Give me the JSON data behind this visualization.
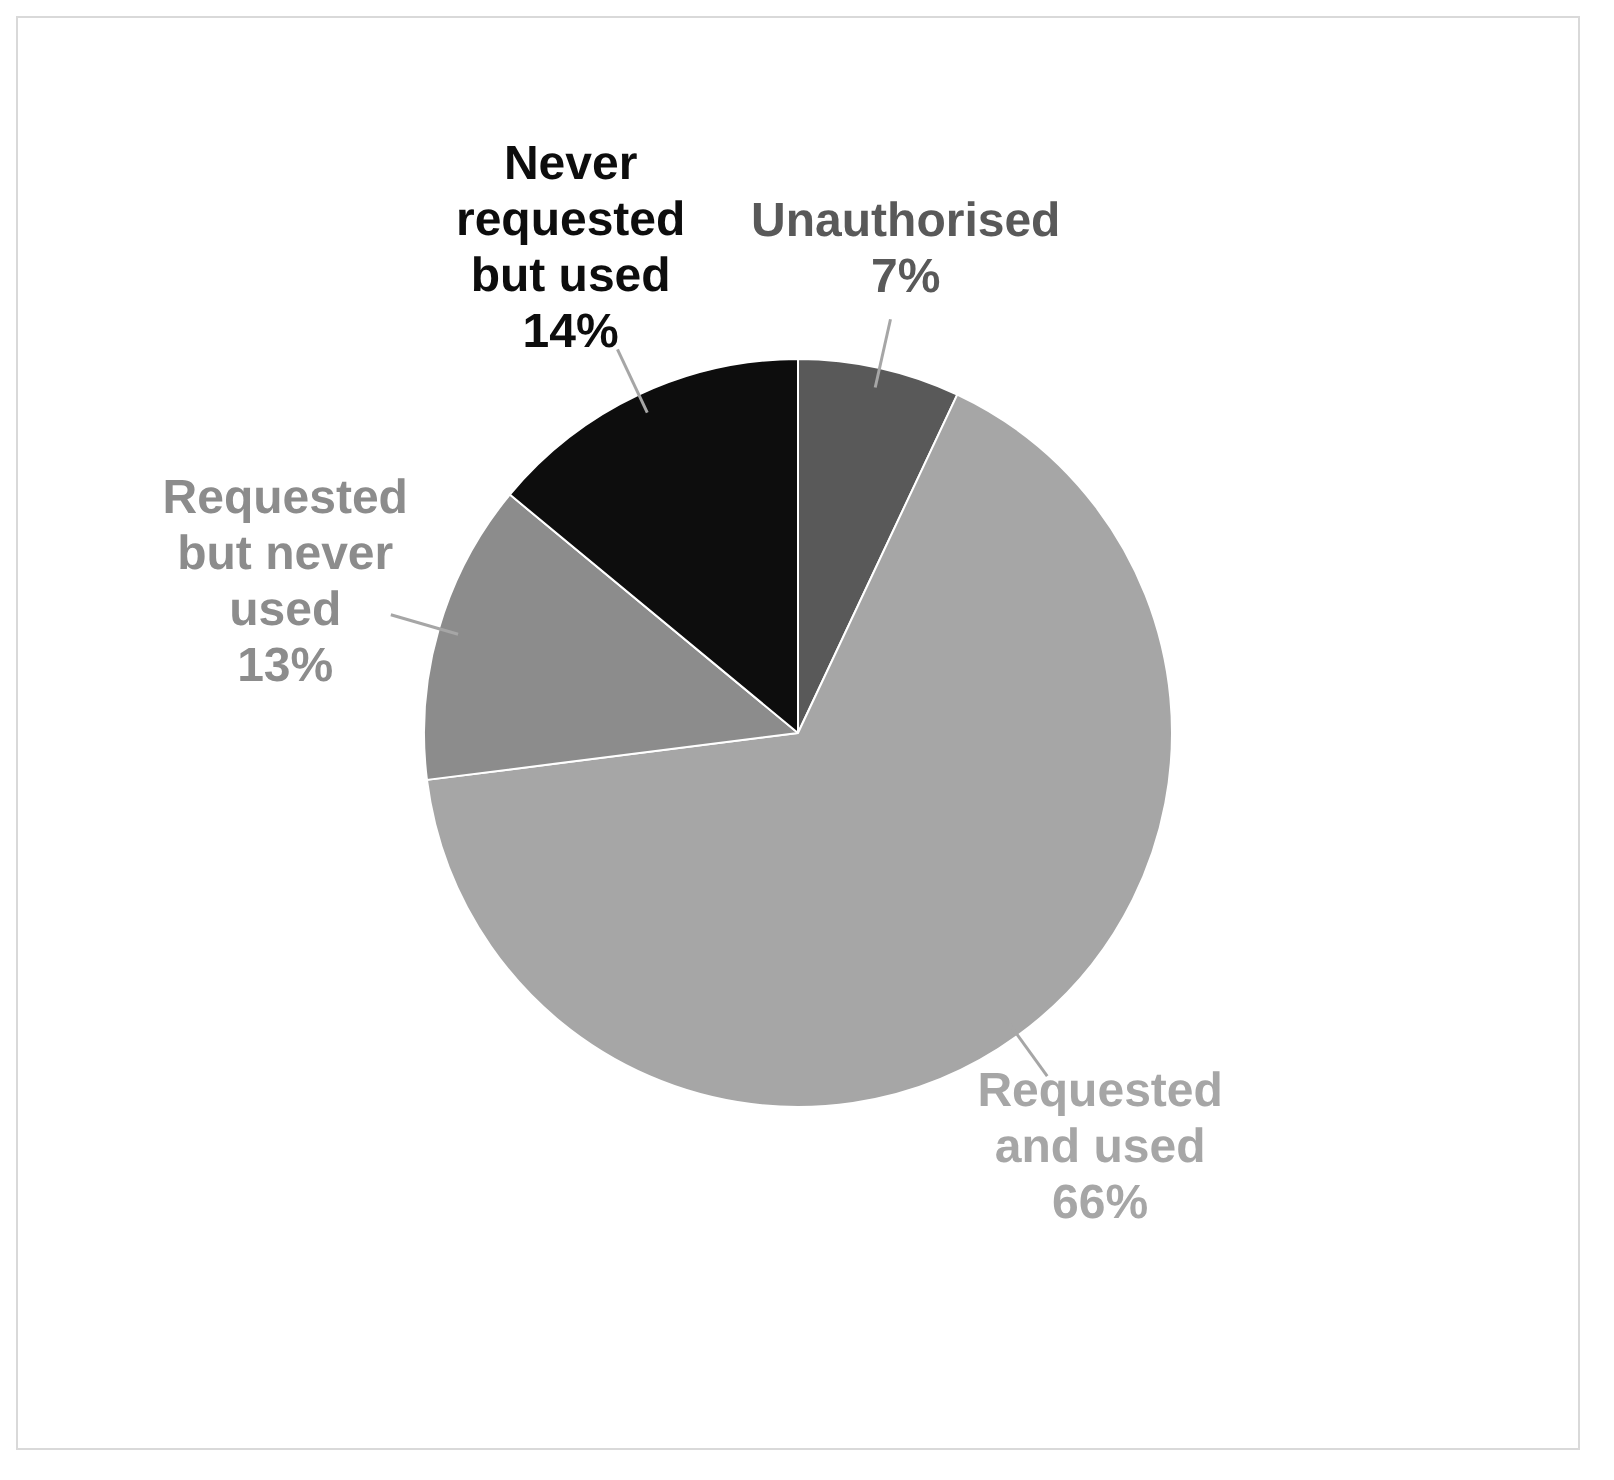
{
  "chart_data": {
    "type": "pie",
    "categories": [
      "Unauthorised",
      "Requested and used",
      "Requested but never used",
      "Never requested but used"
    ],
    "values": [
      7,
      66,
      13,
      14
    ],
    "value_labels": [
      "7%",
      "66%",
      "13%",
      "14%"
    ],
    "colors": [
      "#595959",
      "#a6a6a6",
      "#8c8c8c",
      "#0d0d0d"
    ],
    "legend": false
  }
}
